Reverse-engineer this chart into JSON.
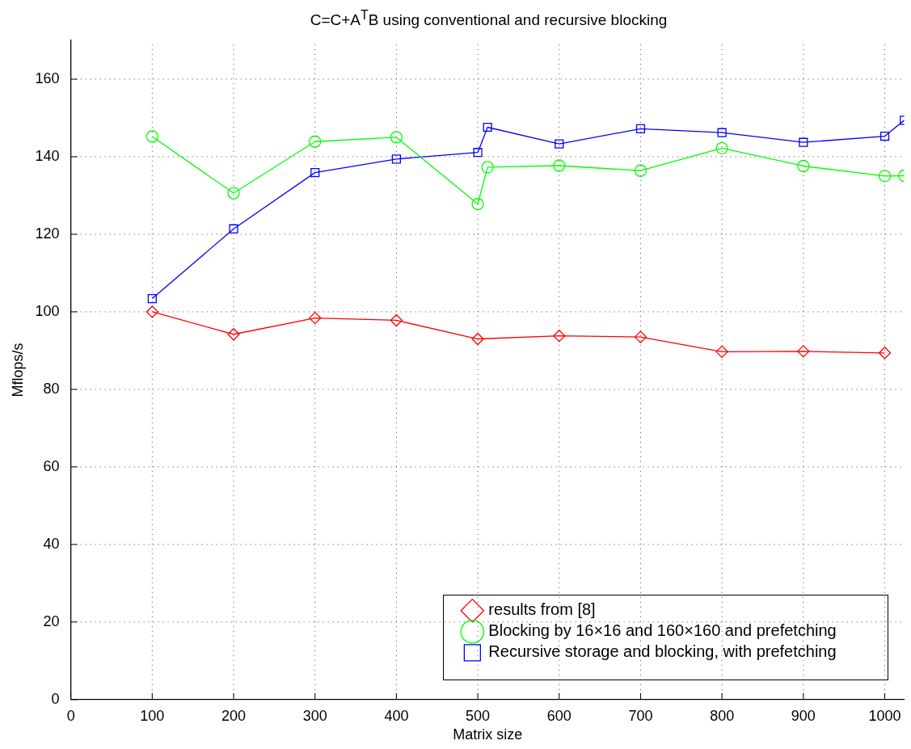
{
  "chart_data": {
    "type": "line",
    "title": "C=C+A$^{T}$B using conventional and recursive blocking",
    "xlabel": "Matrix size",
    "ylabel": "Mflops/s",
    "xlim": [
      0,
      1024
    ],
    "xticks": [
      0,
      100,
      200,
      300,
      400,
      500,
      600,
      700,
      800,
      900,
      1000
    ],
    "ylim": [
      0,
      170
    ],
    "yticks": [
      0,
      20,
      40,
      60,
      80,
      100,
      120,
      140,
      160
    ],
    "grid": true,
    "legend": "bottom right",
    "line_style": "solid",
    "series": [
      {
        "name": "results from [8]",
        "color": "#ff0000",
        "marker": "diamond",
        "x": [
          100,
          200,
          300,
          400,
          500,
          600,
          700,
          800,
          900,
          1000
        ],
        "values": [
          100,
          94.2,
          98.4,
          97.8,
          93,
          93.8,
          93.5,
          89.7,
          89.8,
          89.4
        ]
      },
      {
        "name": "Blocking by 16×16 and 160×160 and prefetching",
        "color": "#00ff00",
        "marker": "circle",
        "x": [
          100,
          200,
          300,
          400,
          500,
          512,
          600,
          700,
          800,
          900,
          1000,
          1024
        ],
        "values": [
          145.2,
          130.6,
          143.9,
          145,
          127.8,
          137.3,
          137.7,
          136.4,
          142.2,
          137.6,
          135,
          135.1
        ]
      },
      {
        "name": "Recursive storage and blocking, with prefetching",
        "color": "#0000ff",
        "marker": "square",
        "x": [
          100,
          200,
          300,
          400,
          500,
          512,
          600,
          700,
          800,
          900,
          1000,
          1024
        ],
        "values": [
          103.4,
          121.4,
          135.9,
          139.4,
          141.1,
          147.6,
          143.3,
          147.2,
          146.2,
          143.7,
          145.3,
          149.4
        ]
      }
    ]
  }
}
